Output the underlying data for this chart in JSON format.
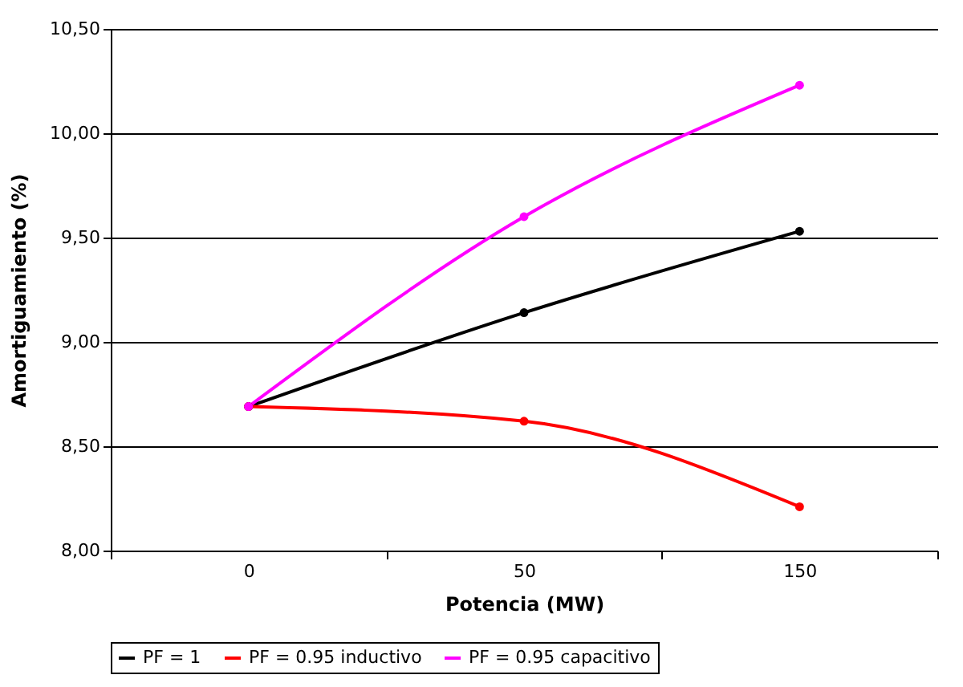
{
  "chart_data": {
    "type": "line",
    "xlabel": "Potencia (MW)",
    "ylabel": "Amortiguamiento (%)",
    "categories": [
      "0",
      "50",
      "150"
    ],
    "series": [
      {
        "name": "PF = 1",
        "color": "#000000",
        "values": [
          8.69,
          9.14,
          9.53
        ]
      },
      {
        "name": "PF = 0.95 inductivo",
        "color": "#ff0000",
        "values": [
          8.69,
          8.62,
          8.21
        ]
      },
      {
        "name": "PF = 0.95 capacitivo",
        "color": "#ff00ff",
        "values": [
          8.69,
          9.6,
          10.23
        ]
      }
    ],
    "ylim": [
      8,
      10.5
    ],
    "yticks": [
      {
        "value": 8,
        "label": "8,00"
      },
      {
        "value": 8.5,
        "label": "8,50"
      },
      {
        "value": 9,
        "label": "9,00"
      },
      {
        "value": 9.5,
        "label": "9,50"
      },
      {
        "value": 10,
        "label": "10,00"
      },
      {
        "value": 10.5,
        "label": "10,50"
      }
    ],
    "grid": "y",
    "legend": "bottom",
    "marker": "circle",
    "line_style": "solid"
  }
}
